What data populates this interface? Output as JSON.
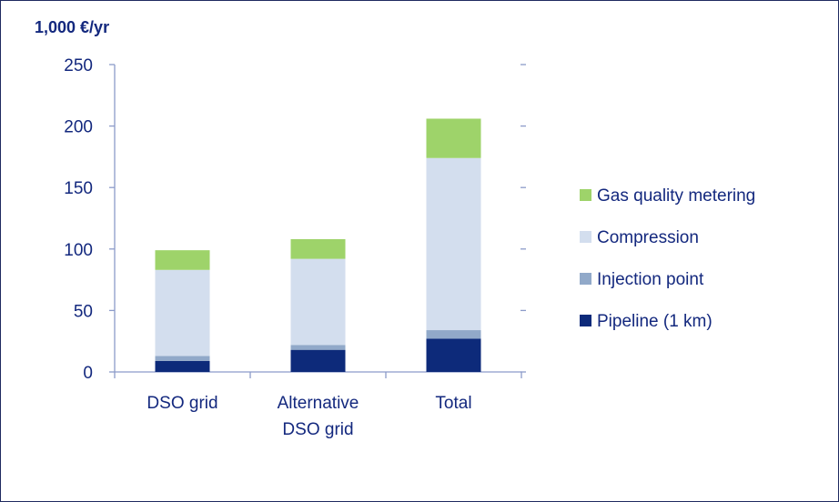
{
  "chart_data": {
    "type": "bar",
    "stacked": true,
    "title": "",
    "ylabel": "1,000 €/yr",
    "xlabel": "",
    "ylim": [
      0,
      250
    ],
    "yticks": [
      "0",
      "50",
      "100",
      "150",
      "200",
      "250"
    ],
    "grid": false,
    "legend_position": "right",
    "categories": [
      [
        "DSO grid"
      ],
      [
        "Alternative",
        "DSO grid"
      ],
      [
        "Total"
      ]
    ],
    "series": [
      {
        "name": "Pipeline (1 km)",
        "color": "#0d2a7a",
        "values": [
          9,
          18,
          27
        ]
      },
      {
        "name": "Injection point",
        "color": "#91a9c9",
        "values": [
          4,
          4,
          7
        ]
      },
      {
        "name": "Compression",
        "color": "#d3deee",
        "values": [
          70,
          70,
          140
        ]
      },
      {
        "name": "Gas quality metering",
        "color": "#9ed36a",
        "values": [
          16,
          16,
          32
        ]
      }
    ],
    "legend_order": [
      "Gas quality metering",
      "Compression",
      "Injection point",
      "Pipeline (1 km)"
    ]
  }
}
